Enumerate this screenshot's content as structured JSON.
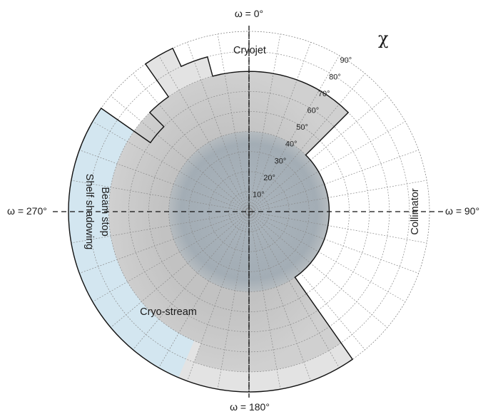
{
  "omega_labels": {
    "top": "ω = 0°",
    "right": "ω = 90°",
    "bottom": "ω = 180°",
    "left": "ω = 270°"
  },
  "chi_symbol": "χ",
  "chi_ticks": [
    "10°",
    "20°",
    "30°",
    "40°",
    "50°",
    "60°",
    "70°",
    "80°",
    "90°"
  ],
  "region_labels": {
    "cryojet": "Cryojet",
    "collimator": "Collimator",
    "beam_stop": "Beam stop",
    "shelf_shadowing": "Shelf shadowing",
    "cryo_stream": "Cryo-stream"
  },
  "colors": {
    "outer_shadow": "#e2e2e2",
    "mid_shadow": "#c9c9c9",
    "inner_core": "#a7b2ba",
    "cryo_stream": "#cfe4ef",
    "grid": "#8c8c8c",
    "outline": "#111111"
  }
}
